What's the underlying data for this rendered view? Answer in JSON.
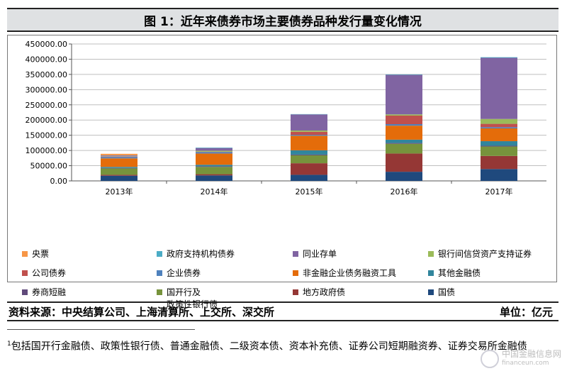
{
  "title": "图 1：近年来债券市场主要债券品种发行量变化情况",
  "source": "资料来源：中央结算公司、上海清算所、上交所、深交所",
  "unit": "单位：亿元",
  "footnote": {
    "marker": "1",
    "text": "包括国开行金融债、政策性银行债、普通金融债、二级资本债、资本补充债、证券公司短期融资券、证券交易所金融债"
  },
  "watermark": {
    "line1": "中国金融信息网",
    "line2": "financeun.com"
  },
  "chart_data": {
    "type": "bar",
    "stacked": true,
    "categories": [
      "2013年",
      "2014年",
      "2015年",
      "2016年",
      "2017年"
    ],
    "ylim": [
      0,
      450000
    ],
    "yticks": [
      "0.00",
      "50000.00",
      "100000.00",
      "150000.00",
      "200000.00",
      "250000.00",
      "300000.00",
      "350000.00",
      "400000.00",
      "450000.00"
    ],
    "ytick_values": [
      0,
      50000,
      100000,
      150000,
      200000,
      250000,
      300000,
      350000,
      400000,
      450000
    ],
    "grid": true,
    "legend_position": "bottom",
    "series": [
      {
        "name": "国债",
        "color": "#1f497d",
        "values": [
          17000,
          18000,
          20000,
          30000,
          39000
        ]
      },
      {
        "name": "地方政府债",
        "color": "#953735",
        "values": [
          3000,
          4000,
          38000,
          60000,
          43000
        ]
      },
      {
        "name": "国开行及\n政策性银行债",
        "color": "#77933c",
        "values": [
          21000,
          24000,
          26000,
          32000,
          31000
        ]
      },
      {
        "name": "券商短融",
        "color": "#604a7b",
        "values": [
          1500,
          2000,
          2500,
          2500,
          2500
        ]
      },
      {
        "name": "其他金融债",
        "color": "#31859c",
        "values": [
          3500,
          5000,
          14000,
          11000,
          15000
        ]
      },
      {
        "name": "非金融企业债务融资工具",
        "color": "#e46c0a",
        "values": [
          28000,
          37000,
          48000,
          46000,
          42000
        ]
      },
      {
        "name": "企业债券",
        "color": "#4f81bd",
        "values": [
          4500,
          5000,
          3000,
          5000,
          4000
        ]
      },
      {
        "name": "公司债券",
        "color": "#c0504d",
        "values": [
          1500,
          1000,
          10000,
          28000,
          11000
        ]
      },
      {
        "name": "银行间信贷资产支持证券",
        "color": "#9bbb59",
        "values": [
          1000,
          3000,
          4000,
          4000,
          16000
        ]
      },
      {
        "name": "同业存单",
        "color": "#8064a2",
        "values": [
          2500,
          9000,
          53000,
          130000,
          201000
        ]
      },
      {
        "name": "政府支持机构债券",
        "color": "#4bacc6",
        "values": [
          500,
          1500,
          1000,
          1500,
          2000
        ]
      },
      {
        "name": "央票",
        "color": "#f79646",
        "values": [
          5000,
          0,
          0,
          0,
          0
        ]
      }
    ]
  },
  "legend_order": [
    "央票",
    "政府支持机构债券",
    "同业存单",
    "银行间信贷资产支持证券",
    "公司债券",
    "企业债券",
    "非金融企业债务融资工具",
    "其他金融债",
    "券商短融",
    "国开行及\n政策性银行债",
    "地方政府债",
    "国债"
  ]
}
